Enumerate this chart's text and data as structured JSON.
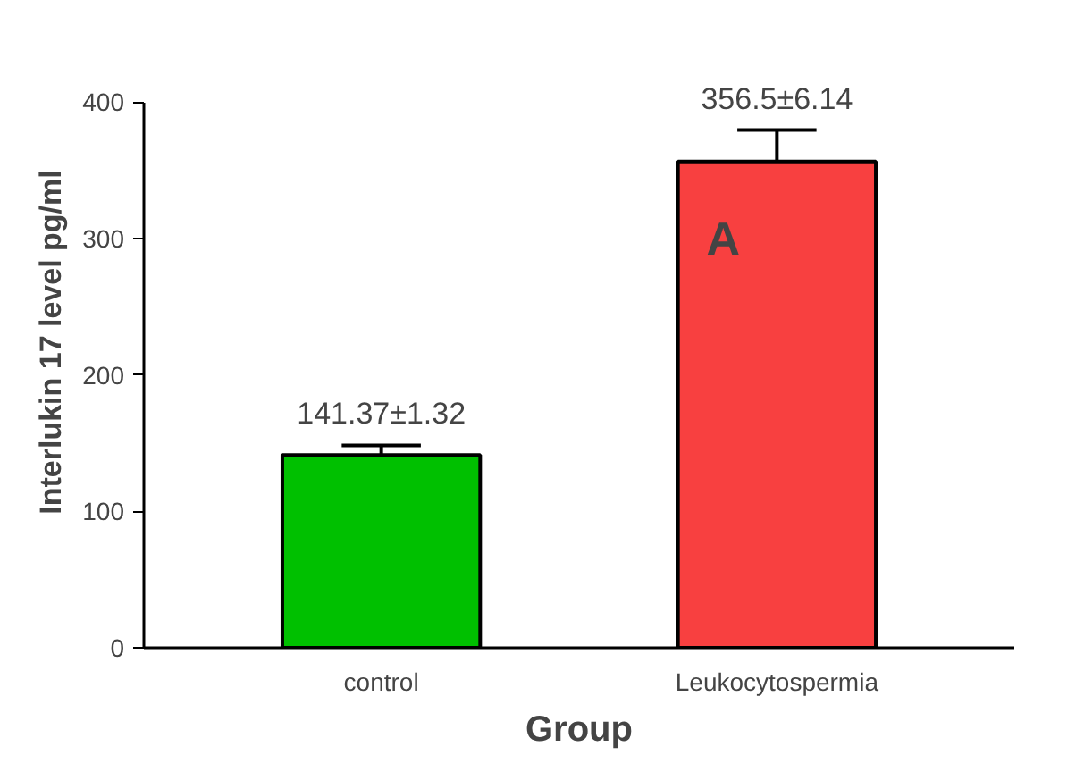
{
  "chart_data": {
    "type": "bar",
    "xlabel": "Group",
    "ylabel": "Interlukin 17 level pg/ml",
    "categories": [
      "control",
      "Leukocytospermia"
    ],
    "values": [
      141.37,
      356.5
    ],
    "colors": [
      "#00c000",
      "#f84040"
    ],
    "errors": [
      7,
      23
    ],
    "value_labels": [
      "141.37±1.32",
      "356.5±6.14"
    ],
    "annotations": [
      "A"
    ],
    "ylim": [
      0,
      400
    ],
    "yticks": [
      0,
      100,
      200,
      300,
      400
    ],
    "grid": false
  }
}
